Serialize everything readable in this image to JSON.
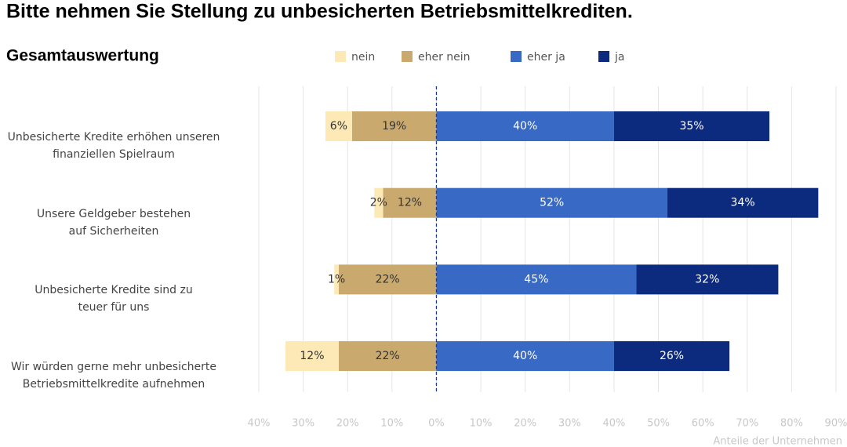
{
  "chart_data": {
    "type": "diverging-bar",
    "title": "Bitte nehmen Sie Stellung zu unbesicherten Betriebsmittelkrediten.",
    "subtitle": "Gesamtauswertung",
    "x_label": "Anteile der Unternehmen",
    "categories": [
      "Unbesicherte Kredite erhöhen unseren\nfinanziellen Spielraum",
      "Unsere Geldgeber bestehen\nauf Sicherheiten",
      "Unbesicherte Kredite sind zu\nteuer für uns",
      "Wir würden gerne mehr unbesicherte\nBetriebsmittelkredite aufnehmen"
    ],
    "series": [
      {
        "name": "nein",
        "color": "#fde9b5",
        "label_color": "#333333",
        "values": [
          -6,
          -2,
          -1,
          -12
        ],
        "value_labels": [
          "6%",
          "2%",
          "1%",
          "12%"
        ]
      },
      {
        "name": "eher nein",
        "color": "#c9a96e",
        "label_color": "#333333",
        "values": [
          -19,
          -12,
          -22,
          -22
        ],
        "value_labels": [
          "19%",
          "12%",
          "22%",
          "22%"
        ]
      },
      {
        "name": "eher ja",
        "color": "#3869c4",
        "label_color": "#ffffff",
        "values": [
          40,
          52,
          45,
          40
        ],
        "value_labels": [
          "40%",
          "52%",
          "45%",
          "40%"
        ]
      },
      {
        "name": "ja",
        "color": "#0d2b7e",
        "label_color": "#ffffff",
        "values": [
          35,
          34,
          32,
          26
        ],
        "value_labels": [
          "35%",
          "34%",
          "32%",
          "26%"
        ]
      }
    ],
    "xlim": [
      -40,
      90
    ],
    "xticks": [
      {
        "value": -40,
        "label": "40%"
      },
      {
        "value": -30,
        "label": "30%"
      },
      {
        "value": -20,
        "label": "20%"
      },
      {
        "value": -10,
        "label": "10%"
      },
      {
        "value": 0,
        "label": "0%"
      },
      {
        "value": 10,
        "label": "10%"
      },
      {
        "value": 20,
        "label": "20%"
      },
      {
        "value": 30,
        "label": "30%"
      },
      {
        "value": 40,
        "label": "40%"
      },
      {
        "value": 50,
        "label": "50%"
      },
      {
        "value": 60,
        "label": "60%"
      },
      {
        "value": 70,
        "label": "70%"
      },
      {
        "value": 80,
        "label": "80%"
      },
      {
        "value": 90,
        "label": "90%"
      }
    ],
    "grid": true
  }
}
